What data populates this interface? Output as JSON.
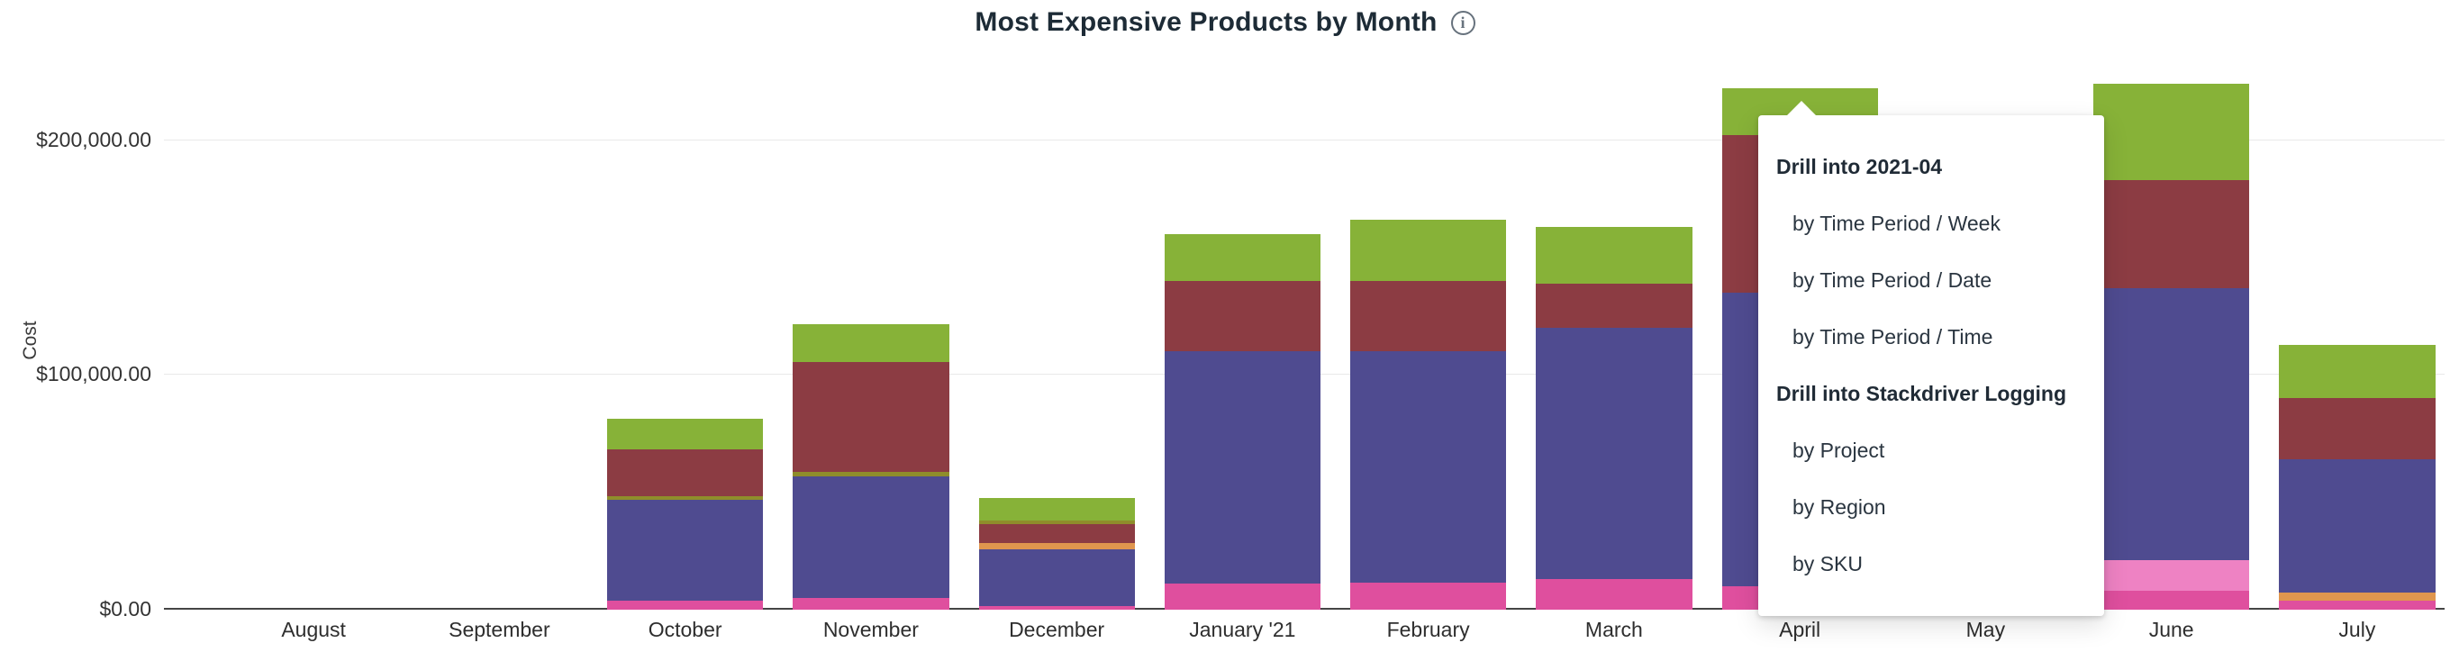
{
  "chart_data": {
    "type": "bar",
    "stacked": true,
    "title": "Most Expensive Products by Month",
    "xlabel": "",
    "ylabel": "Cost",
    "ylim": [
      0,
      235000
    ],
    "grid": true,
    "legend": "none",
    "y_ticks": [
      {
        "value": 0,
        "label": "$0.00"
      },
      {
        "value": 100000,
        "label": "$100,000.00"
      },
      {
        "value": 200000,
        "label": "$200,000.00"
      }
    ],
    "categories": [
      "August",
      "September",
      "October",
      "November",
      "December",
      "January '21",
      "February",
      "March",
      "April",
      "May",
      "June",
      "July"
    ],
    "months": [
      {
        "label": "August",
        "segments": []
      },
      {
        "label": "September",
        "segments": []
      },
      {
        "label": "October",
        "segments": [
          {
            "name": "pink",
            "color": "#df4f9e",
            "value": 4000
          },
          {
            "name": "purple",
            "color": "#4f4b90",
            "value": 43000
          },
          {
            "name": "olive",
            "color": "#8f8d2b",
            "value": 1500
          },
          {
            "name": "maroon",
            "color": "#8c3c43",
            "value": 20000
          },
          {
            "name": "green",
            "color": "#87b238",
            "value": 13000
          }
        ]
      },
      {
        "label": "November",
        "segments": [
          {
            "name": "pink",
            "color": "#df4f9e",
            "value": 5000
          },
          {
            "name": "purple",
            "color": "#4f4b90",
            "value": 52000
          },
          {
            "name": "olive",
            "color": "#8f8d2b",
            "value": 2000
          },
          {
            "name": "maroon",
            "color": "#8c3c43",
            "value": 47000
          },
          {
            "name": "green",
            "color": "#87b238",
            "value": 16000
          }
        ]
      },
      {
        "label": "December",
        "segments": [
          {
            "name": "pink",
            "color": "#df4f9e",
            "value": 1500
          },
          {
            "name": "purple",
            "color": "#4f4b90",
            "value": 24000
          },
          {
            "name": "orange",
            "color": "#e0964e",
            "value": 2500
          },
          {
            "name": "maroon",
            "color": "#8c3c43",
            "value": 8000
          },
          {
            "name": "olive",
            "color": "#8f8d2b",
            "value": 1500
          },
          {
            "name": "green",
            "color": "#87b238",
            "value": 9500
          }
        ]
      },
      {
        "label": "January '21",
        "segments": [
          {
            "name": "pink",
            "color": "#df4f9e",
            "value": 11000
          },
          {
            "name": "purple",
            "color": "#4f4b90",
            "value": 99000
          },
          {
            "name": "maroon",
            "color": "#8c3c43",
            "value": 30000
          },
          {
            "name": "green",
            "color": "#87b238",
            "value": 20000
          }
        ]
      },
      {
        "label": "February",
        "segments": [
          {
            "name": "pink",
            "color": "#df4f9e",
            "value": 11500
          },
          {
            "name": "purple",
            "color": "#4f4b90",
            "value": 98500
          },
          {
            "name": "maroon",
            "color": "#8c3c43",
            "value": 30000
          },
          {
            "name": "green",
            "color": "#87b238",
            "value": 26000
          }
        ]
      },
      {
        "label": "March",
        "segments": [
          {
            "name": "pink",
            "color": "#df4f9e",
            "value": 13000
          },
          {
            "name": "purple",
            "color": "#4f4b90",
            "value": 107000
          },
          {
            "name": "maroon",
            "color": "#8c3c43",
            "value": 19000
          },
          {
            "name": "green",
            "color": "#87b238",
            "value": 24000
          }
        ]
      },
      {
        "label": "April",
        "segments": [
          {
            "name": "pink",
            "color": "#df4f9e",
            "value": 10000
          },
          {
            "name": "purple",
            "color": "#4f4b90",
            "value": 125000
          },
          {
            "name": "maroon",
            "color": "#8c3c43",
            "value": 67000
          },
          {
            "name": "green",
            "color": "#87b238",
            "value": 20000
          }
        ]
      },
      {
        "label": "May",
        "segments": []
      },
      {
        "label": "June",
        "segments": [
          {
            "name": "pink",
            "color": "#df4f9e",
            "value": 8000
          },
          {
            "name": "light-pink",
            "color": "#ee82c3",
            "value": 13000
          },
          {
            "name": "purple",
            "color": "#4f4b90",
            "value": 116000
          },
          {
            "name": "maroon",
            "color": "#8c3c43",
            "value": 46000
          },
          {
            "name": "green",
            "color": "#87b238",
            "value": 41000
          }
        ]
      },
      {
        "label": "July",
        "segments": [
          {
            "name": "pink",
            "color": "#df4f9e",
            "value": 4000
          },
          {
            "name": "orange",
            "color": "#e0964e",
            "value": 3500
          },
          {
            "name": "purple",
            "color": "#4f4b90",
            "value": 57000
          },
          {
            "name": "maroon",
            "color": "#8c3c43",
            "value": 26000
          },
          {
            "name": "green",
            "color": "#87b238",
            "value": 22500
          }
        ]
      }
    ]
  },
  "icons": {
    "info": "i"
  },
  "menu": {
    "sections": [
      {
        "header": "Drill into 2021-04",
        "items": [
          "by Time Period / Week",
          "by Time Period / Date",
          "by Time Period / Time"
        ]
      },
      {
        "header": "Drill into Stackdriver Logging",
        "items": [
          "by Project",
          "by Region",
          "by SKU"
        ]
      }
    ]
  }
}
